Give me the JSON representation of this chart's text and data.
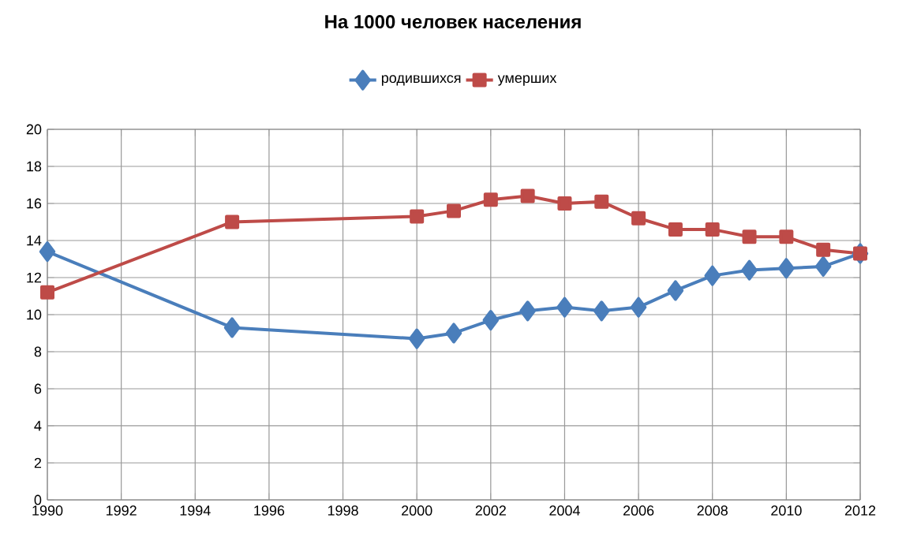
{
  "chart_data": {
    "type": "line",
    "title": "На 1000 человек населения",
    "x": [
      1990,
      1995,
      2000,
      2001,
      2002,
      2003,
      2004,
      2005,
      2006,
      2007,
      2008,
      2009,
      2010,
      2011,
      2012
    ],
    "series": [
      {
        "name": "родившихся",
        "color": "#4a7ebb",
        "marker": "diamond",
        "values": [
          13.4,
          9.3,
          8.7,
          9.0,
          9.7,
          10.2,
          10.4,
          10.2,
          10.4,
          11.3,
          12.1,
          12.4,
          12.5,
          12.6,
          13.3
        ]
      },
      {
        "name": "умерших",
        "color": "#be4b48",
        "marker": "square",
        "values": [
          11.2,
          15.0,
          15.3,
          15.6,
          16.2,
          16.4,
          16.0,
          16.1,
          15.2,
          14.6,
          14.6,
          14.2,
          14.2,
          13.5,
          13.3
        ]
      }
    ],
    "xlim": [
      1990,
      2012
    ],
    "xticks": [
      1990,
      1992,
      1994,
      1996,
      1998,
      2000,
      2002,
      2004,
      2006,
      2008,
      2010,
      2012
    ],
    "ylim": [
      0,
      20
    ],
    "yticks": [
      0,
      2,
      4,
      6,
      8,
      10,
      12,
      14,
      16,
      18,
      20
    ],
    "grid": true,
    "legend": "top"
  }
}
